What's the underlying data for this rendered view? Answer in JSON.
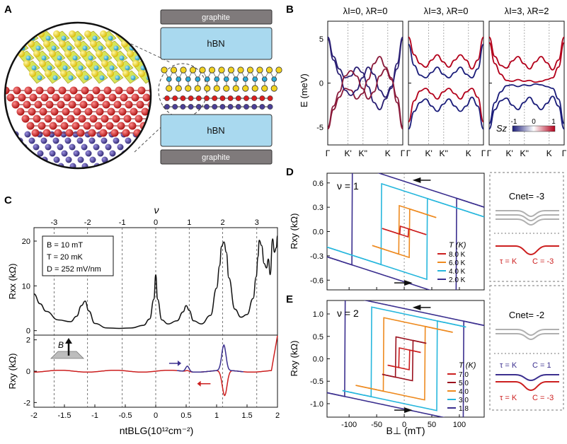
{
  "figure": {
    "panel_labels": [
      "A",
      "B",
      "C",
      "D",
      "E"
    ],
    "stack_layers": [
      "graphite",
      "hBN",
      "hBN",
      "graphite"
    ],
    "colors": {
      "hbn": "#a9d9ef",
      "graphite": "#7f7a7b",
      "tungsten": "#f2d321",
      "selenium": "#2aa9d6",
      "carbon_top": "#d91e1e",
      "carbon_bottom": "#4a3f96",
      "black": "#111111",
      "red": "#cc1f1f",
      "blue": "#3b2f8f",
      "orange": "#ee8a1f",
      "cyan": "#27b7dd",
      "darkred": "#9b111e"
    }
  },
  "chart_data": [
    {
      "panel": "B",
      "type": "line",
      "subplots": [
        {
          "title": "λI=0, λR=0"
        },
        {
          "title": "λI=3, λR=0"
        },
        {
          "title": "λI=3, λR=2"
        }
      ],
      "ylabel": "E (meV)",
      "yticks": [
        "5",
        "0",
        "-5"
      ],
      "xticks": [
        "Γ",
        "K'",
        "K''",
        "K",
        "Γ"
      ],
      "colorbar": {
        "label": "Sz",
        "ticks": [
          "-1",
          "0",
          "1"
        ]
      },
      "bands_meV": [
        [
          [
            5.2,
            3,
            1.6,
            0.6,
            0.8,
            1.8,
            1.2,
            -0.4,
            -2.2,
            -3.0,
            -1.8,
            -0.6,
            2.2,
            5.2
          ],
          [
            -5.2,
            -3,
            -1.6,
            -0.6,
            -0.8,
            -1.8,
            -1.2,
            0.4,
            2.2,
            3.0,
            1.8,
            0.6,
            -2.2,
            -5.2
          ],
          [
            5.0,
            2.6,
            1.0,
            -0.8,
            -1.4,
            -0.8,
            0.6,
            1.8,
            1.0,
            -0.8,
            -1.6,
            -0.4,
            1.6,
            5.0
          ],
          [
            -5.0,
            -2.6,
            -1.0,
            0.8,
            1.4,
            0.8,
            -0.6,
            -1.8,
            -1.0,
            0.8,
            1.6,
            0.4,
            -1.6,
            -5.0
          ]
        ],
        [
          [
            5.2,
            3.2,
            2.2,
            1.8,
            2.6,
            3.2,
            2.4,
            1.8,
            2.6,
            3.2,
            2.6,
            1.6,
            2.6,
            5.2
          ],
          [
            -5.2,
            -3.2,
            -2.2,
            -1.8,
            -2.6,
            -3.2,
            -2.4,
            -1.8,
            -2.6,
            -3.2,
            -2.6,
            -1.6,
            -2.6,
            -5.2
          ],
          [
            4.4,
            2.0,
            0.9,
            0.6,
            1.2,
            1.8,
            1.0,
            0.6,
            1.2,
            1.8,
            1.0,
            0.6,
            1.6,
            4.4
          ],
          [
            -4.4,
            -2.0,
            -0.9,
            -0.6,
            -1.2,
            -1.8,
            -1.0,
            -0.6,
            -1.2,
            -1.8,
            -1.0,
            -0.6,
            -1.6,
            -4.4
          ]
        ],
        [
          [
            5.2,
            3.0,
            2.0,
            1.7,
            2.5,
            3.0,
            2.2,
            1.6,
            2.4,
            3.0,
            2.3,
            1.5,
            2.6,
            5.2
          ],
          [
            -5.2,
            -3.0,
            -2.0,
            -1.7,
            -2.5,
            -3.0,
            -2.2,
            -1.6,
            -2.4,
            -3.0,
            -2.3,
            -1.5,
            -2.6,
            -5.2
          ],
          [
            4.6,
            2.2,
            1.0,
            0.3,
            0.2,
            0.4,
            0.2,
            0.3,
            0.1,
            0.2,
            0.4,
            0.6,
            1.8,
            4.6
          ],
          [
            -4.6,
            -2.2,
            -1.0,
            -0.3,
            -0.2,
            -0.4,
            -0.2,
            -0.3,
            -0.1,
            -0.2,
            -0.4,
            -0.6,
            -1.8,
            -4.6
          ]
        ]
      ]
    },
    {
      "panel": "C",
      "type": "line",
      "top_axis_label": "ν",
      "top_ticks": [
        "-3",
        "-2",
        "-1",
        "0",
        "1",
        "2",
        "3"
      ],
      "xlabel": "ntBLG(10¹²cm⁻²)",
      "xticks": [
        "-2",
        "-1.5",
        "-1",
        "-0.5",
        "0",
        "0.5",
        "1",
        "1.5",
        "2"
      ],
      "xlim": [
        -2,
        2
      ],
      "rxx": {
        "ylabel": "Rxx (kΩ)",
        "yticks": [
          "0",
          "10",
          "20"
        ],
        "ylim": [
          -1,
          23
        ],
        "x": [
          -2,
          -1.9,
          -1.8,
          -1.6,
          -1.4,
          -1.3,
          -1.22,
          -1.16,
          -1.1,
          -1.0,
          -0.8,
          -0.6,
          -0.4,
          -0.2,
          -0.1,
          -0.03,
          0,
          0.03,
          0.1,
          0.2,
          0.35,
          0.45,
          0.5,
          0.55,
          0.62,
          0.75,
          0.9,
          1.0,
          1.05,
          1.08,
          1.12,
          1.16,
          1.2,
          1.3,
          1.4,
          1.5,
          1.6,
          1.65,
          1.68,
          1.7,
          1.74,
          1.78,
          1.82,
          1.85,
          1.88,
          1.92,
          1.95,
          1.98,
          2.0
        ],
        "y": [
          8.2,
          6,
          4.3,
          2.4,
          2.0,
          3.2,
          5.6,
          6.6,
          4.4,
          1.6,
          0.6,
          0.5,
          0.6,
          1.2,
          2.6,
          7,
          12.5,
          7,
          2.4,
          1.5,
          2.2,
          4.2,
          5.6,
          4.5,
          2.2,
          1.5,
          3.4,
          9.5,
          14.5,
          18.8,
          19.8,
          17.5,
          11.8,
          4.8,
          3.0,
          3.6,
          7.2,
          12,
          16.5,
          20.2,
          19.0,
          15,
          14,
          16,
          12.5,
          20.5,
          17.5,
          18.5,
          21.2
        ],
        "notes": [
          "B = 10 mT",
          "T = 20 mK",
          "D = 252 mV/nm"
        ]
      },
      "rxy": {
        "ylabel": "Rxy (kΩ)",
        "yticks": [
          "-2",
          "0",
          "2"
        ],
        "ylim": [
          -2.3,
          2.3
        ],
        "arrow_label": "B"
      }
    },
    {
      "panel": "D",
      "type": "line",
      "title": "ν = 1",
      "ylabel": "Rxy (kΩ)",
      "yticks": [
        "0.6",
        "0.3",
        "0.0",
        "-0.3",
        "-0.6"
      ],
      "ylim": [
        -0.72,
        0.72
      ],
      "xlim": [
        -140,
        145
      ],
      "legend": {
        "title": "T (K)",
        "entries": [
          "8.0 K",
          "6.0 K",
          "4.0 K",
          "2.0 K"
        ]
      },
      "loops": [
        {
          "T": "8.0 K",
          "coercive_mT": 8,
          "amplitude": 0.05,
          "span": 40
        },
        {
          "T": "6.0 K",
          "coercive_mT": 10,
          "amplitude": 0.3,
          "span": 58
        },
        {
          "T": "4.0 K",
          "coercive_mT": 42,
          "amplitude": 0.5,
          "span": 145
        },
        {
          "T": "2.0 K",
          "coercive_mT": 95,
          "amplitude": 0.62,
          "span": 145
        }
      ],
      "side_panel": {
        "cnet": "Cnet= -3",
        "bottom_tau": "τ = K",
        "bottom_c": "C = -3"
      }
    },
    {
      "panel": "E",
      "type": "line",
      "title": "ν = 2",
      "ylabel": "Rxy (kΩ)",
      "yticks": [
        "1.0",
        "0.5",
        "0.0",
        "-0.5",
        "-1.0"
      ],
      "ylim": [
        -1.3,
        1.3
      ],
      "xlim": [
        -140,
        145
      ],
      "xlabel": "B⊥ (mT)",
      "xticks": [
        "-100",
        "-50",
        "0",
        "50",
        "100"
      ],
      "legend": {
        "title": "T (K)",
        "entries": [
          "7.0",
          "5.0",
          "4.0",
          "3.0",
          "1.8"
        ]
      },
      "loops": [
        {
          "T": "7.0",
          "coercive_mT": 10,
          "amplitude": 0.22,
          "span": 30
        },
        {
          "T": "5.0",
          "coercive_mT": 16,
          "amplitude": 0.45,
          "span": 40
        },
        {
          "T": "4.0",
          "coercive_mT": 38,
          "amplitude": 0.82,
          "span": 88
        },
        {
          "T": "3.0",
          "coercive_mT": 60,
          "amplitude": 1.0,
          "span": 112
        },
        {
          "T": "1.8",
          "coercive_mT": 108,
          "amplitude": 1.12,
          "span": 145
        }
      ],
      "side_panel": {
        "cnet": "Cnet= -2",
        "top_tau": "τ = K",
        "top_c": "C = 1",
        "bottom_tau": "τ = K",
        "bottom_c": "C = -3"
      }
    }
  ]
}
